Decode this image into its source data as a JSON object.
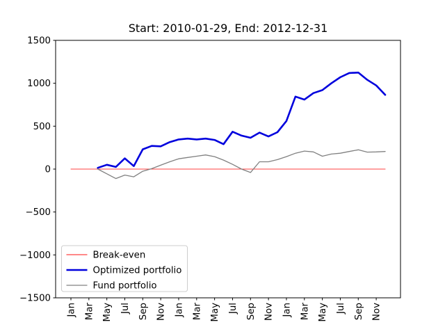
{
  "title": "Start: 2010-01-29, End: 2012-12-31",
  "colors": {
    "background": "#ffffff",
    "axis": "#000000",
    "break_even": "#ff4040",
    "optimized": "#0000dd",
    "fund": "#808080",
    "legend_border": "#cccccc"
  },
  "legend": {
    "position": "lower-left",
    "items": [
      {
        "label": "Break-even",
        "color": "#ff4040",
        "weight": 1.2
      },
      {
        "label": "Optimized portfolio",
        "color": "#0000dd",
        "weight": 2.6
      },
      {
        "label": "Fund portfolio",
        "color": "#808080",
        "weight": 1.2
      }
    ]
  },
  "chart_data": {
    "type": "line",
    "title": "Start: 2010-01-29, End: 2012-12-31",
    "xlabel": "",
    "ylabel": "",
    "ylim": [
      -1500,
      1500
    ],
    "y_ticks": [
      -1500,
      -1000,
      -500,
      0,
      500,
      1000,
      1500
    ],
    "grid": false,
    "legend_position": "lower left",
    "x_start_month": "2010-01",
    "x_end_month": "2012-12",
    "x_tick_every_months": 2,
    "x_tick_labels": [
      "Jan",
      "Mar",
      "May",
      "Jul",
      "Sep",
      "Nov",
      "Jan",
      "Mar",
      "May",
      "Jul",
      "Sep",
      "Nov",
      "Jan",
      "Mar",
      "May",
      "Jul",
      "Sep",
      "Nov"
    ],
    "series": [
      {
        "name": "Break-even",
        "color": "#ff4040",
        "width": 1.1,
        "start_month_index": 0,
        "values": [
          0,
          0,
          0,
          0,
          0,
          0,
          0,
          0,
          0,
          0,
          0,
          0,
          0,
          0,
          0,
          0,
          0,
          0,
          0,
          0,
          0,
          0,
          0,
          0,
          0,
          0,
          0,
          0,
          0,
          0,
          0,
          0,
          0,
          0,
          0,
          0
        ]
      },
      {
        "name": "Optimized portfolio",
        "color": "#0000dd",
        "width": 2.6,
        "start_month_index": 3,
        "values": [
          15,
          50,
          25,
          125,
          35,
          230,
          270,
          265,
          315,
          345,
          355,
          345,
          355,
          340,
          290,
          435,
          390,
          365,
          425,
          380,
          430,
          560,
          845,
          810,
          885,
          920,
          1000,
          1070,
          1120,
          1125,
          1040,
          975,
          865
        ]
      },
      {
        "name": "Fund portfolio",
        "color": "#808080",
        "width": 1.3,
        "start_month_index": 3,
        "values": [
          0,
          -55,
          -110,
          -70,
          -90,
          -25,
          5,
          45,
          85,
          120,
          135,
          150,
          165,
          145,
          105,
          55,
          0,
          -40,
          85,
          85,
          110,
          145,
          185,
          210,
          200,
          150,
          175,
          185,
          205,
          225,
          198,
          200,
          205
        ]
      }
    ]
  }
}
